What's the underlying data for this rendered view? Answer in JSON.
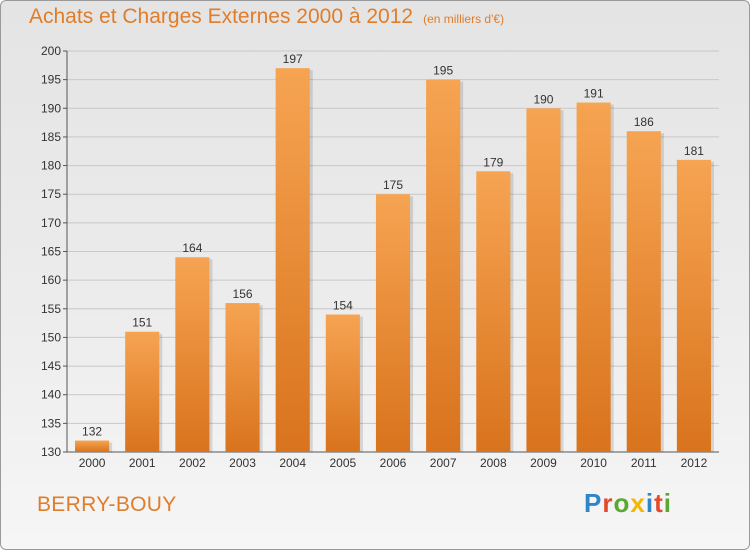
{
  "header": {
    "title": "Achats et Charges Externes 2000 à 2012",
    "subtitle": "(en milliers d'€)"
  },
  "footer": {
    "commune": "BERRY-BOUY",
    "logo_text": "Proxiti",
    "logo_colors": [
      "#2e86c9",
      "#e24a2b",
      "#5aa832",
      "#f2b705",
      "#2e86c9",
      "#e24a2b",
      "#5aa832"
    ]
  },
  "colors": {
    "bar_light": "#f6a452",
    "bar_dark": "#d9731d",
    "title": "#e07d2a",
    "grid": "#c8c8c8",
    "text": "#333333"
  },
  "chart_data": {
    "type": "bar",
    "categories": [
      "2000",
      "2001",
      "2002",
      "2003",
      "2004",
      "2005",
      "2006",
      "2007",
      "2008",
      "2009",
      "2010",
      "2011",
      "2012"
    ],
    "values": [
      132,
      151,
      164,
      156,
      197,
      154,
      175,
      195,
      179,
      190,
      191,
      186,
      181
    ],
    "data_labels": [
      "132",
      "151",
      "164",
      "156",
      "197",
      "154",
      "175",
      "195",
      "179",
      "190",
      "191",
      "186",
      "181"
    ],
    "ylim": [
      130,
      200
    ],
    "yticks": [
      130,
      135,
      140,
      145,
      150,
      155,
      160,
      165,
      170,
      175,
      180,
      185,
      190,
      195,
      200
    ],
    "ytick_labels": [
      "130",
      "135",
      "140",
      "145",
      "150",
      "155",
      "160",
      "165",
      "170",
      "175",
      "180",
      "185",
      "190",
      "195",
      "200"
    ],
    "grid": true,
    "legend": false
  }
}
